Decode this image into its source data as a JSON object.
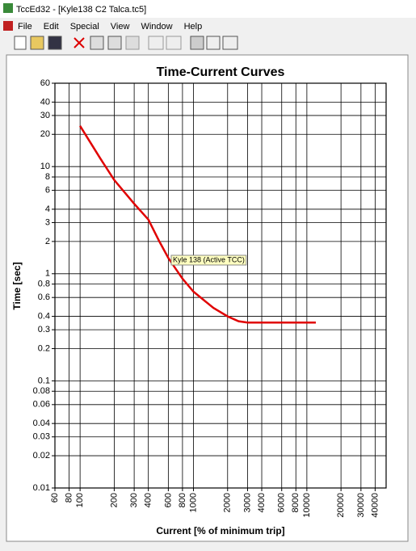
{
  "window": {
    "title": "TccEd32 - [Kyle138 C2 Talca.tc5]",
    "menu": [
      "File",
      "Edit",
      "Special",
      "View",
      "Window",
      "Help"
    ]
  },
  "chart_data": {
    "type": "line",
    "title": "Time-Current Curves",
    "x_label": "Current [% of minimum trip]",
    "y_label": "Time [sec]",
    "x": [
      100,
      150,
      200,
      300,
      400,
      500,
      600,
      800,
      1000,
      1500,
      2000,
      2500,
      3000,
      5000,
      12000
    ],
    "series": [
      {
        "name": "Kyle 138 (Active TCC)",
        "color": "#e00000",
        "values": [
          24,
          12,
          7.5,
          4.5,
          3.2,
          2,
          1.4,
          0.9,
          0.68,
          0.48,
          0.4,
          0.36,
          0.35,
          0.35,
          0.35
        ]
      }
    ],
    "xlim": [
      60,
      50000
    ],
    "ylim": [
      0.01,
      60
    ],
    "xticks": [
      60,
      80,
      100,
      200,
      300,
      400,
      600,
      800,
      1000,
      2000,
      3000,
      4000,
      6000,
      8000,
      10000,
      20000,
      30000,
      40000
    ],
    "yticks": [
      0.01,
      0.02,
      0.03,
      0.04,
      0.06,
      0.08,
      0.1,
      0.2,
      0.3,
      0.4,
      0.6,
      0.8,
      1,
      2,
      3,
      4,
      6,
      8,
      10,
      20,
      30,
      40,
      60
    ],
    "log_x": true,
    "log_y": true,
    "grid": true
  }
}
